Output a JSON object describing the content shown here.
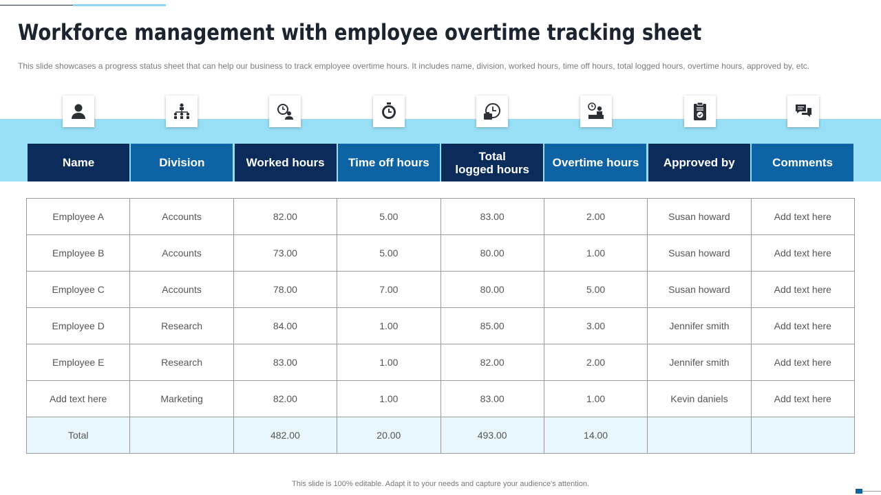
{
  "title": "Workforce management with employee overtime tracking sheet",
  "subtitle": "This slide showcases a progress status sheet that can help our business to track employee overtime hours. It includes name, division, worked hours, time off hours, total logged hours, overtime hours, approved by, etc.",
  "icons": [
    "person-icon",
    "org-chart-icon",
    "clock-person-icon",
    "stopwatch-icon",
    "clock-briefcase-icon",
    "desk-clock-icon",
    "clipboard-check-icon",
    "chat-icon"
  ],
  "columns": [
    {
      "label": "Name",
      "tone": "dark"
    },
    {
      "label": "Division",
      "tone": "mid"
    },
    {
      "label": "Worked hours",
      "tone": "dark"
    },
    {
      "label": "Time off hours",
      "tone": "mid"
    },
    {
      "label": "Total\nlogged hours",
      "tone": "dark"
    },
    {
      "label": "Overtime hours",
      "tone": "mid"
    },
    {
      "label": "Approved by",
      "tone": "dark"
    },
    {
      "label": "Comments",
      "tone": "mid"
    }
  ],
  "rows": [
    [
      "Employee A",
      "Accounts",
      "82.00",
      "5.00",
      "83.00",
      "2.00",
      "Susan howard",
      "Add text here"
    ],
    [
      "Employee B",
      "Accounts",
      "73.00",
      "5.00",
      "80.00",
      "1.00",
      "Susan howard",
      "Add text here"
    ],
    [
      "Employee C",
      "Accounts",
      "78.00",
      "7.00",
      "80.00",
      "5.00",
      "Susan howard",
      "Add text here"
    ],
    [
      "Employee D",
      "Research",
      "84.00",
      "1.00",
      "85.00",
      "3.00",
      "Jennifer  smith",
      "Add text here"
    ],
    [
      "Employee E",
      "Research",
      "83.00",
      "1.00",
      "82.00",
      "2.00",
      "Jennifer  smith",
      "Add text here"
    ],
    [
      "Add text here",
      "Marketing",
      "82.00",
      "1.00",
      "83.00",
      "1.00",
      "Kevin  daniels",
      "Add text here"
    ]
  ],
  "total_row": [
    "Total",
    "",
    "482.00",
    "20.00",
    "493.00",
    "14.00",
    "",
    ""
  ],
  "footer": "This slide is 100% editable. Adapt it to your needs and capture your audience's attention.",
  "colors": {
    "header_dark": "#0b2c5b",
    "header_mid": "#0d63a3",
    "band": "#98dff5",
    "total_row": "#e8f7fc"
  }
}
